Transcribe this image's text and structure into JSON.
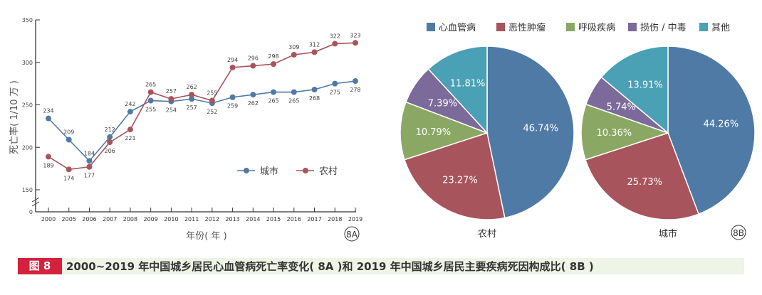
{
  "chart_data": [
    {
      "type": "line",
      "id": "8A",
      "ylabel": "死亡率( 1/10 万 )",
      "xlabel": "年份( 年 )",
      "panel_label": "8A",
      "categories": [
        "2000",
        "2005",
        "2006",
        "2007",
        "2008",
        "2009",
        "2010",
        "2011",
        "2012",
        "2013",
        "2014",
        "2015",
        "2016",
        "2017",
        "2018",
        "2019"
      ],
      "yticks": [
        "0",
        "150",
        "200",
        "250",
        "300",
        "350"
      ],
      "ylim": [
        150,
        350
      ],
      "axis_break": true,
      "grid": false,
      "legend_placement": "right-middle",
      "series": [
        {
          "name": "城市",
          "color": "#4f7aa6",
          "values": [
            234,
            209,
            184,
            212,
            242,
            255,
            254,
            257,
            252,
            259,
            262,
            265,
            265,
            268,
            275,
            278
          ]
        },
        {
          "name": "农村",
          "color": "#a8545c",
          "values": [
            189,
            174,
            177,
            206,
            221,
            265,
            257,
            262,
            255,
            294,
            296,
            298,
            309,
            312,
            322,
            323
          ]
        }
      ]
    },
    {
      "type": "pie",
      "legend": [
        {
          "name": "心血管病",
          "color": "#4f7aa6"
        },
        {
          "name": "恶性肿瘤",
          "color": "#a8545c"
        },
        {
          "name": "呼吸疾病",
          "color": "#8aa864"
        },
        {
          "name": "损伤 / 中毒",
          "color": "#7b6a9a"
        },
        {
          "name": "其他",
          "color": "#4aa0b4"
        }
      ],
      "legend_placement": "top",
      "panel_label": "8B",
      "pies": [
        {
          "label": "农村",
          "values": [
            46.74,
            23.27,
            10.79,
            7.39,
            11.81
          ],
          "value_labels": [
            "46.74%",
            "23.27%",
            "10.79%",
            "7.39%",
            "11.81%"
          ]
        },
        {
          "label": "城市",
          "values": [
            44.26,
            25.73,
            10.36,
            5.74,
            13.91
          ],
          "value_labels": [
            "44.26%",
            "25.73%",
            "10.36%",
            "5.74%",
            "13.91%"
          ]
        }
      ]
    }
  ],
  "caption": {
    "figure": "图 8",
    "text": "2000~2019 年中国城乡居民心血管病死亡率变化( 8A )和 2019 年中国城乡居民主要疾病死因构成比( 8B )"
  }
}
